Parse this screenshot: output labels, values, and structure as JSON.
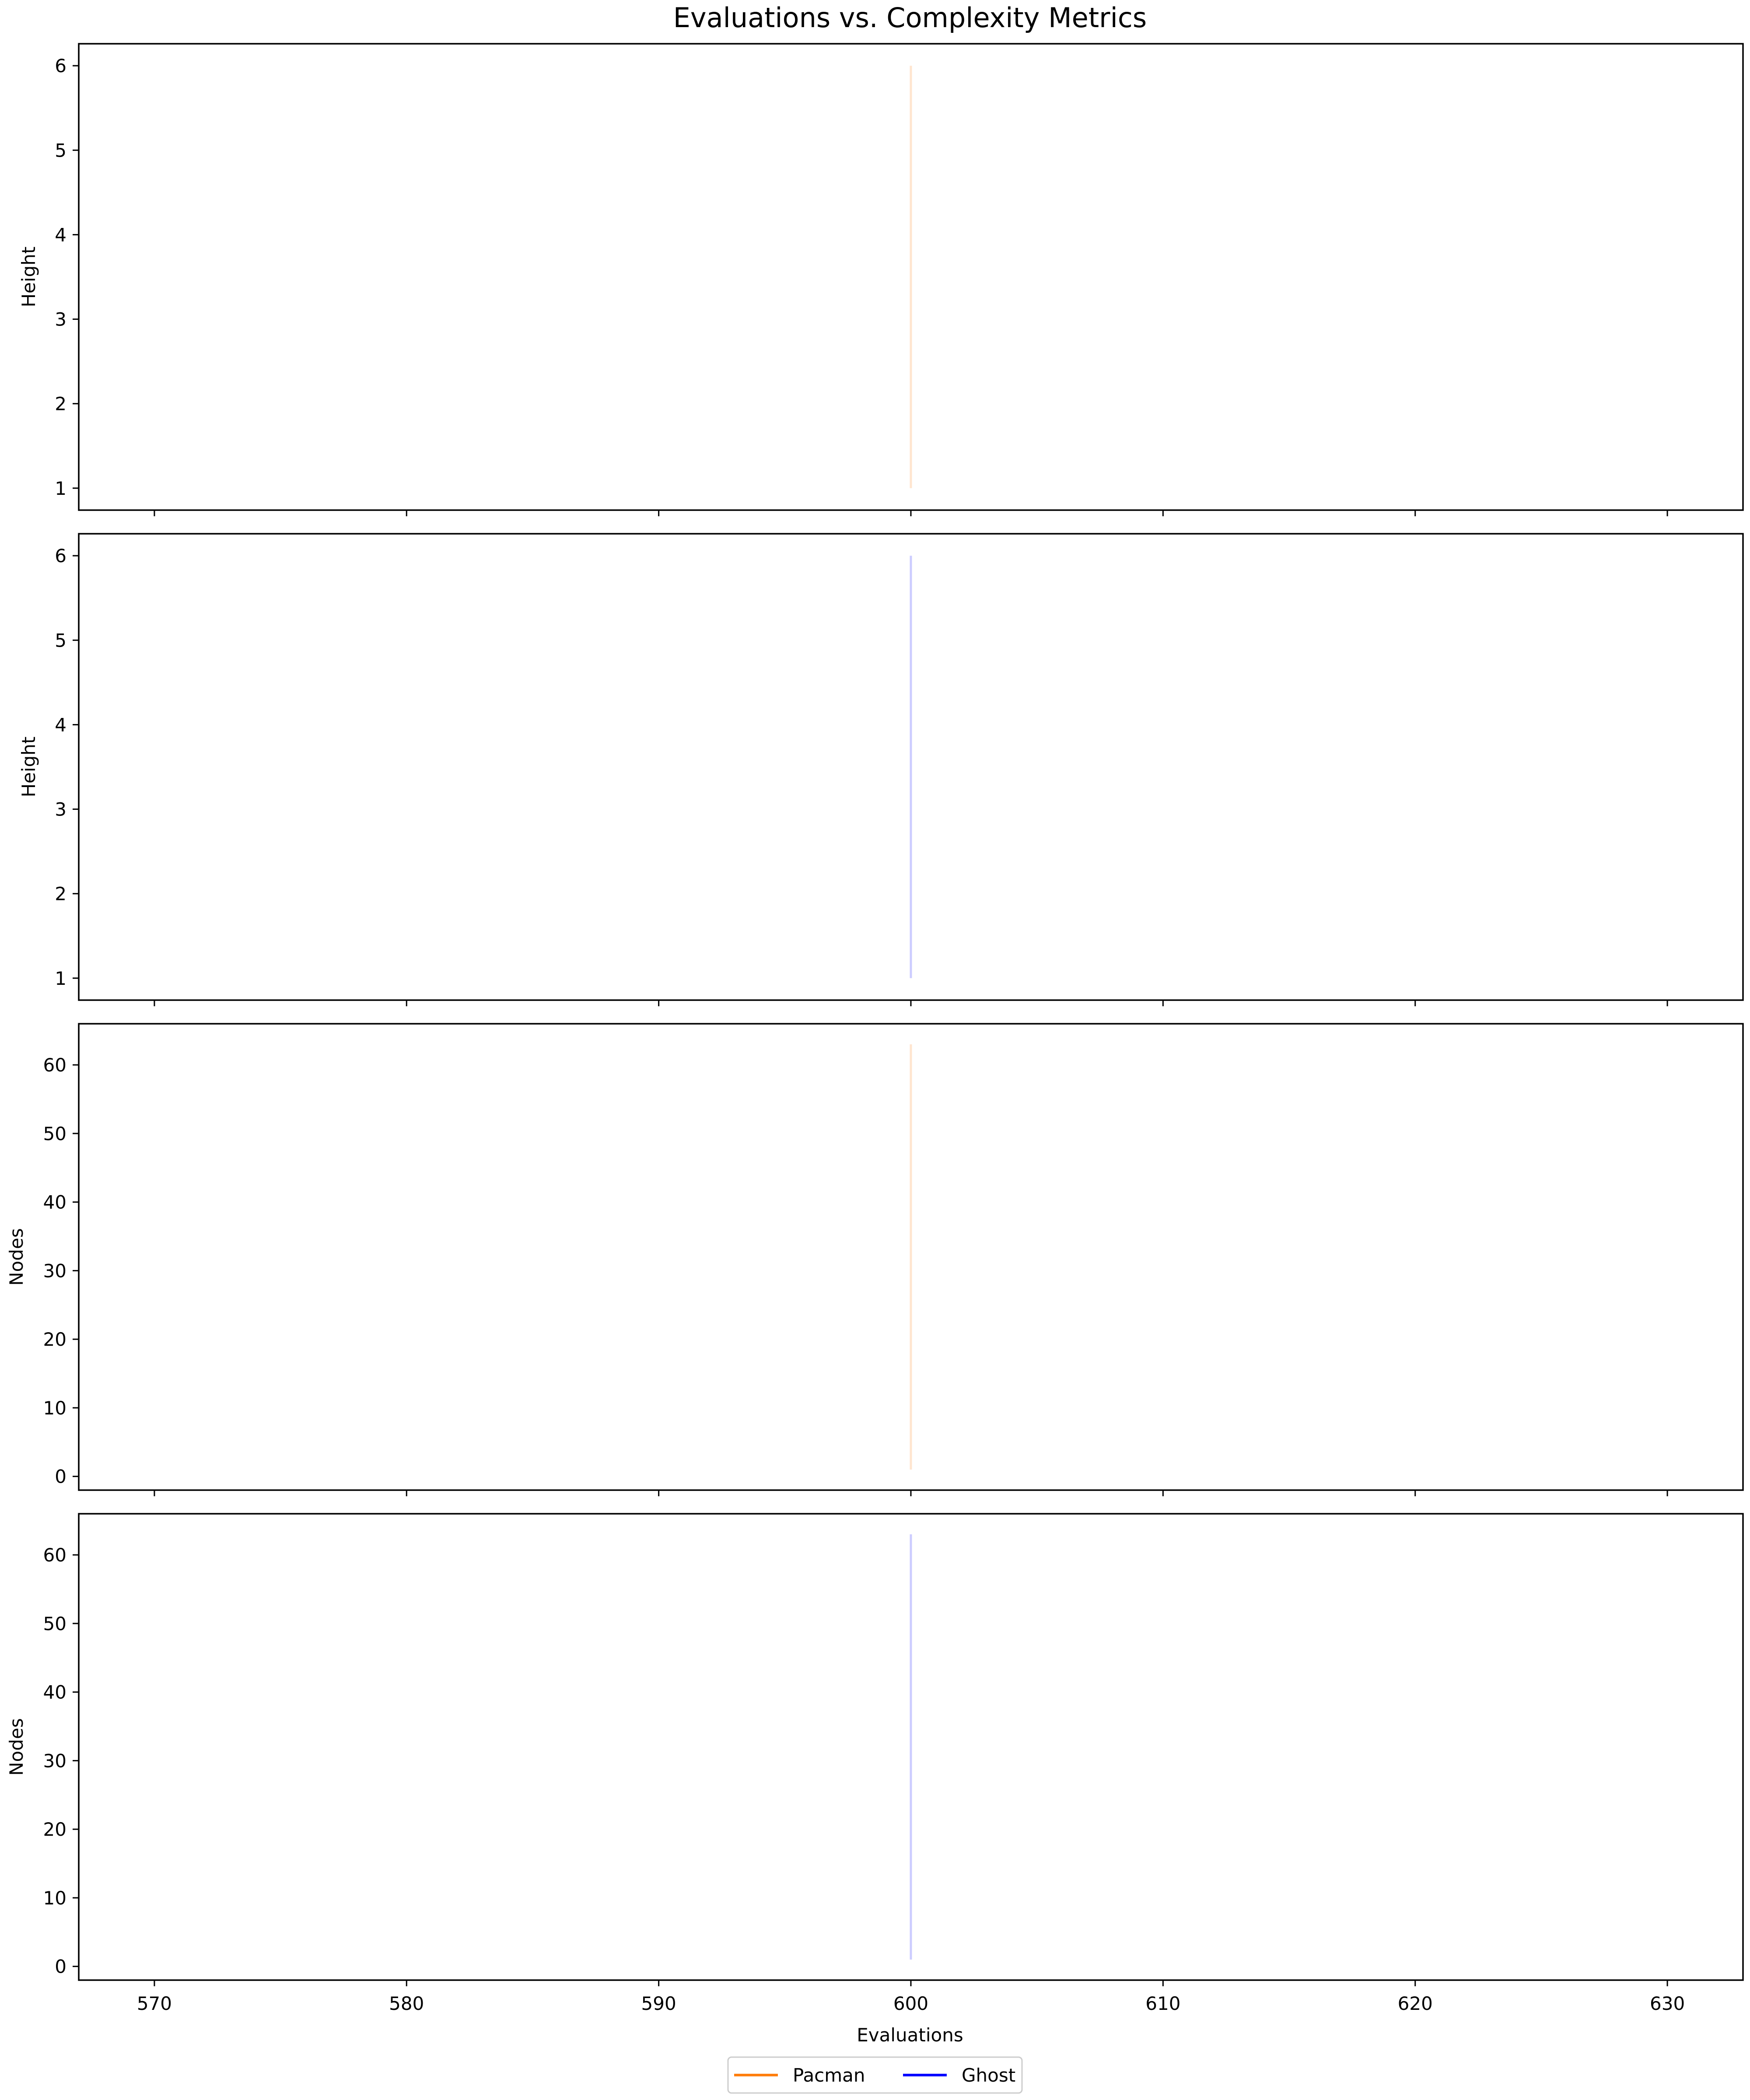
{
  "chart_data": {
    "type": "line",
    "title": "Evaluations vs. Complexity Metrics",
    "xlabel": "Evaluations",
    "xlim": [
      567,
      633
    ],
    "xticks": [
      570,
      580,
      590,
      600,
      610,
      620,
      630
    ],
    "colors": {
      "pacman": "#ff7f0e",
      "ghost": "#0000ff"
    },
    "legend": {
      "placement": "bottom-center",
      "entries": [
        {
          "name": "Pacman",
          "color": "#ff7f0e"
        },
        {
          "name": "Ghost",
          "color": "#0000ff"
        }
      ]
    },
    "panels": [
      {
        "ylabel": "Height",
        "ylim": [
          0.74,
          6.26
        ],
        "yticks": [
          1,
          2,
          3,
          4,
          5,
          6
        ],
        "series": [
          {
            "name": "Pacman",
            "color": "#ff7f0e",
            "alpha": 0.2,
            "x": [
              600,
              600
            ],
            "y": [
              1,
              6
            ]
          }
        ]
      },
      {
        "ylabel": "Height",
        "ylim": [
          0.74,
          6.26
        ],
        "yticks": [
          1,
          2,
          3,
          4,
          5,
          6
        ],
        "series": [
          {
            "name": "Ghost",
            "color": "#0000ff",
            "alpha": 0.2,
            "x": [
              600,
              600
            ],
            "y": [
              1,
              6
            ]
          }
        ]
      },
      {
        "ylabel": "Nodes",
        "ylim": [
          -2,
          66
        ],
        "yticks": [
          0,
          10,
          20,
          30,
          40,
          50,
          60
        ],
        "series": [
          {
            "name": "Pacman",
            "color": "#ff7f0e",
            "alpha": 0.2,
            "x": [
              600,
              600
            ],
            "y": [
              1,
              63
            ]
          }
        ]
      },
      {
        "ylabel": "Nodes",
        "ylim": [
          -2,
          66
        ],
        "yticks": [
          0,
          10,
          20,
          30,
          40,
          50,
          60
        ],
        "series": [
          {
            "name": "Ghost",
            "color": "#0000ff",
            "alpha": 0.2,
            "x": [
              600,
              600
            ],
            "y": [
              1,
              63
            ]
          }
        ]
      }
    ]
  }
}
